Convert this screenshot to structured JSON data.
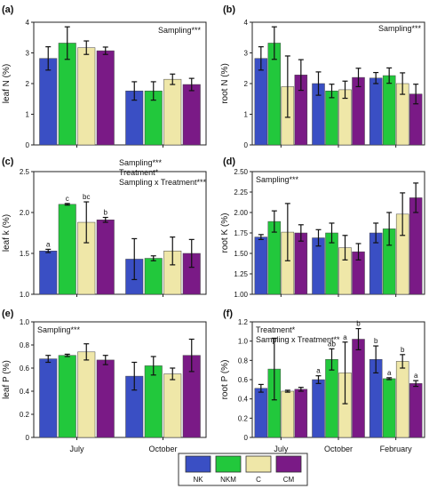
{
  "colors": {
    "NK": "#3a4fc4",
    "NKM": "#22c83c",
    "C": "#efe7a8",
    "CM": "#7a1a86"
  },
  "legend": [
    "NK",
    "NKM",
    "C",
    "CM"
  ],
  "chart_data": [
    {
      "id": "a",
      "type": "bar",
      "panel_label": "(a)",
      "ylabel": "leaf N (%)",
      "ylim": [
        0,
        4
      ],
      "yticks": [
        0,
        1,
        2,
        3,
        4
      ],
      "ytick_labels": [
        "0",
        "1",
        "2",
        "3",
        "4"
      ],
      "categories": [
        "July",
        "October"
      ],
      "show_xlabels": false,
      "annotation": [
        "Sampling***"
      ],
      "series": [
        {
          "name": "NK",
          "values": [
            2.82,
            1.76
          ],
          "errors": [
            0.38,
            0.3
          ]
        },
        {
          "name": "NKM",
          "values": [
            3.32,
            1.76
          ],
          "errors": [
            0.53,
            0.3
          ]
        },
        {
          "name": "C",
          "values": [
            3.17,
            2.14
          ],
          "errors": [
            0.22,
            0.17
          ]
        },
        {
          "name": "CM",
          "values": [
            3.07,
            1.97
          ],
          "errors": [
            0.12,
            0.2
          ]
        }
      ]
    },
    {
      "id": "b",
      "type": "bar",
      "panel_label": "(b)",
      "ylabel": "root N (%)",
      "ylim": [
        0,
        4
      ],
      "yticks": [
        0,
        1,
        2,
        3,
        4
      ],
      "ytick_labels": [
        "0",
        "1",
        "2",
        "3",
        "4"
      ],
      "categories": [
        "July",
        "October",
        "February"
      ],
      "show_xlabels": false,
      "annotation": [
        "Sampling***"
      ],
      "series": [
        {
          "name": "NK",
          "values": [
            2.82,
            2.0,
            2.18
          ],
          "errors": [
            0.38,
            0.38,
            0.18
          ]
        },
        {
          "name": "NKM",
          "values": [
            3.32,
            1.76,
            2.26
          ],
          "errors": [
            0.53,
            0.22,
            0.25
          ]
        },
        {
          "name": "C",
          "values": [
            1.9,
            1.8,
            2.0
          ],
          "errors": [
            1.0,
            0.28,
            0.35
          ]
        },
        {
          "name": "CM",
          "values": [
            2.28,
            2.2,
            1.66
          ],
          "errors": [
            0.5,
            0.3,
            0.32
          ]
        }
      ]
    },
    {
      "id": "c",
      "type": "bar",
      "panel_label": "(c)",
      "ylabel": "leaf k (%)",
      "ylim": [
        1.0,
        2.5
      ],
      "yticks": [
        1.0,
        1.5,
        2.0,
        2.5
      ],
      "ytick_labels": [
        "1.0",
        "1.5",
        "2.0",
        "2.5"
      ],
      "categories": [
        "July",
        "October"
      ],
      "show_xlabels": false,
      "annotation": [
        "Sampling***",
        "Treatment*",
        "Sampling x Treatment***"
      ],
      "series": [
        {
          "name": "NK",
          "values": [
            1.53,
            1.43
          ],
          "errors": [
            0.02,
            0.25
          ],
          "letters": [
            "a",
            ""
          ]
        },
        {
          "name": "NKM",
          "values": [
            2.1,
            1.44
          ],
          "errors": [
            0.01,
            0.03
          ],
          "letters": [
            "c",
            ""
          ]
        },
        {
          "name": "C",
          "values": [
            1.88,
            1.53
          ],
          "errors": [
            0.25,
            0.17
          ],
          "letters": [
            "bc",
            ""
          ]
        },
        {
          "name": "CM",
          "values": [
            1.91,
            1.5
          ],
          "errors": [
            0.03,
            0.17
          ],
          "letters": [
            "b",
            ""
          ]
        }
      ]
    },
    {
      "id": "d",
      "type": "bar",
      "panel_label": "(d)",
      "ylabel": "root K (%)",
      "ylim": [
        1.0,
        2.5
      ],
      "yticks": [
        1.0,
        1.25,
        1.5,
        1.75,
        2.0,
        2.25,
        2.5
      ],
      "ytick_labels": [
        "1.00",
        "1.25",
        "1.50",
        "1.75",
        "2.00",
        "2.25",
        "2.50"
      ],
      "categories": [
        "July",
        "October",
        "February"
      ],
      "show_xlabels": false,
      "annotation": [
        "Sampling***"
      ],
      "series": [
        {
          "name": "NK",
          "values": [
            1.7,
            1.69,
            1.75
          ],
          "errors": [
            0.03,
            0.1,
            0.12
          ]
        },
        {
          "name": "NKM",
          "values": [
            1.89,
            1.75,
            1.8
          ],
          "errors": [
            0.13,
            0.12,
            0.2
          ]
        },
        {
          "name": "C",
          "values": [
            1.76,
            1.57,
            1.98
          ],
          "errors": [
            0.35,
            0.15,
            0.26
          ]
        },
        {
          "name": "CM",
          "values": [
            1.75,
            1.52,
            2.18
          ],
          "errors": [
            0.1,
            0.1,
            0.18
          ]
        }
      ]
    },
    {
      "id": "e",
      "type": "bar",
      "panel_label": "(e)",
      "ylabel": "leaf P (%)",
      "ylim": [
        0,
        1.0
      ],
      "yticks": [
        0,
        0.2,
        0.4,
        0.6,
        0.8,
        1.0
      ],
      "ytick_labels": [
        "0",
        "0.2",
        "0.4",
        "0.6",
        "0.8",
        "1.0"
      ],
      "categories": [
        "July",
        "October"
      ],
      "show_xlabels": true,
      "annotation": [
        "Sampling***"
      ],
      "series": [
        {
          "name": "NK",
          "values": [
            0.68,
            0.53
          ],
          "errors": [
            0.03,
            0.12
          ]
        },
        {
          "name": "NKM",
          "values": [
            0.71,
            0.62
          ],
          "errors": [
            0.01,
            0.08
          ]
        },
        {
          "name": "C",
          "values": [
            0.74,
            0.55
          ],
          "errors": [
            0.07,
            0.05
          ]
        },
        {
          "name": "CM",
          "values": [
            0.67,
            0.71
          ],
          "errors": [
            0.04,
            0.14
          ]
        }
      ]
    },
    {
      "id": "f",
      "type": "bar",
      "panel_label": "(f)",
      "ylabel": "root P (%)",
      "ylim": [
        0,
        1.2
      ],
      "yticks": [
        0,
        0.2,
        0.4,
        0.6,
        0.8,
        1.0,
        1.2
      ],
      "ytick_labels": [
        "0",
        "0.2",
        "0.4",
        "0.6",
        "0.8",
        "1.0",
        "1.2"
      ],
      "categories": [
        "July",
        "October",
        "February"
      ],
      "show_xlabels": true,
      "annotation": [
        "Treatment*",
        "Sampling x Treatment**"
      ],
      "series": [
        {
          "name": "NK",
          "values": [
            0.51,
            0.6,
            0.81
          ],
          "errors": [
            0.04,
            0.04,
            0.14
          ],
          "letters": [
            "",
            "a",
            "b"
          ]
        },
        {
          "name": "NKM",
          "values": [
            0.71,
            0.81,
            0.61
          ],
          "errors": [
            0.32,
            0.11,
            0.01
          ],
          "letters": [
            "",
            "ab",
            "a"
          ]
        },
        {
          "name": "C",
          "values": [
            0.48,
            0.67,
            0.79
          ],
          "errors": [
            0.01,
            0.32,
            0.07
          ],
          "letters": [
            "",
            "a",
            "b"
          ]
        },
        {
          "name": "CM",
          "values": [
            0.5,
            1.02,
            0.56
          ],
          "errors": [
            0.02,
            0.11,
            0.03
          ],
          "letters": [
            "",
            "b",
            "a"
          ]
        }
      ]
    }
  ]
}
